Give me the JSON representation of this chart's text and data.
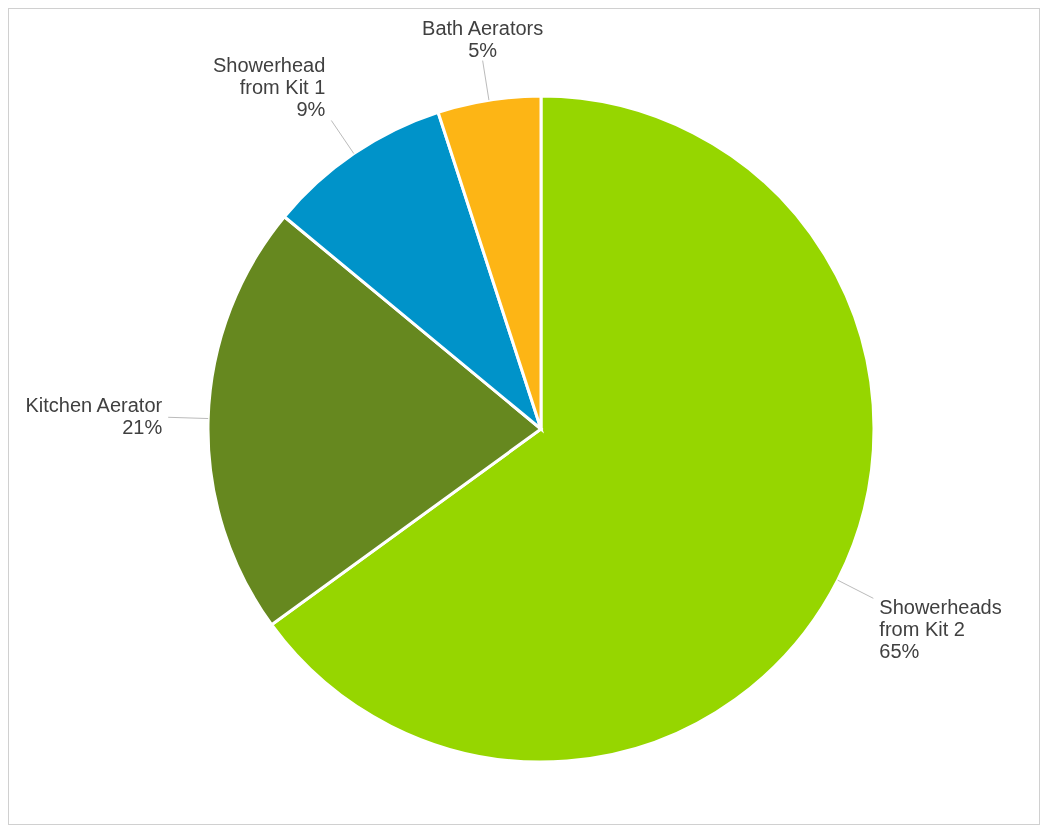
{
  "chart_data": {
    "type": "pie",
    "categories": [
      "Showerheads from Kit 2",
      "Kitchen Aerator",
      "Showerhead from Kit 1",
      "Bath Aerators"
    ],
    "values": [
      65,
      21,
      9,
      5
    ],
    "colors": [
      "#96d600",
      "#66881f",
      "#0093c9",
      "#fdb515"
    ],
    "value_labels": [
      "65%",
      "21%",
      "9%",
      "5%"
    ],
    "legend": false
  }
}
